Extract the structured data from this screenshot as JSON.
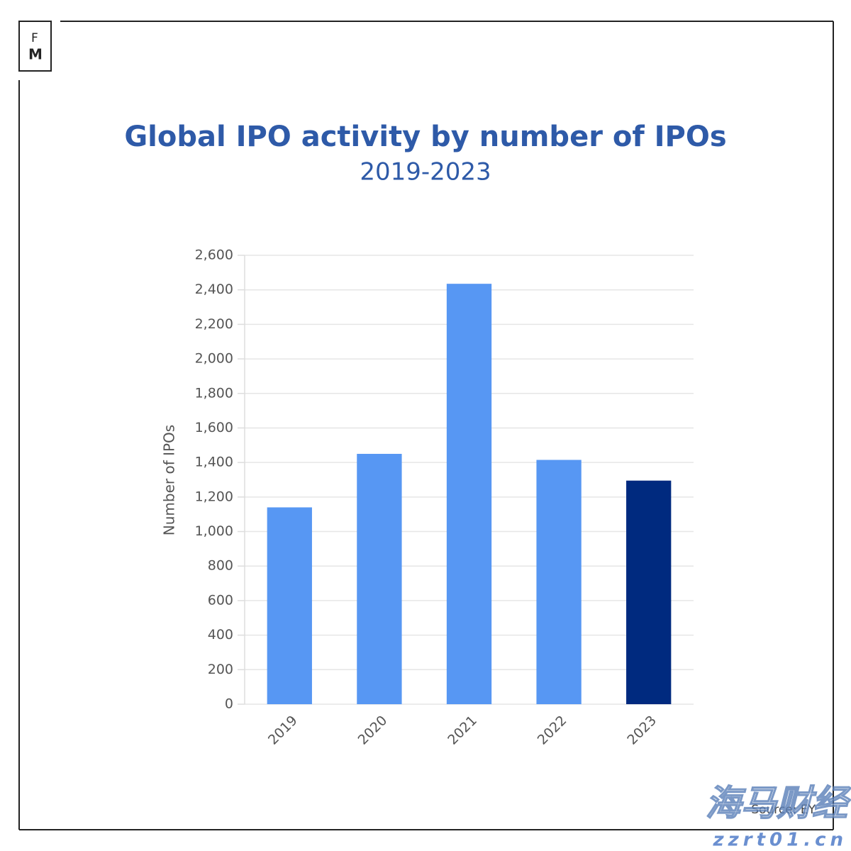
{
  "logo": {
    "top": "F",
    "bottom": "M"
  },
  "chart_data": {
    "type": "bar",
    "title": "Global IPO activity by number of IPOs",
    "subtitle": "2019-2023",
    "y_label": "Number of IPOs",
    "categories": [
      "2019",
      "2020",
      "2021",
      "2022",
      "2023"
    ],
    "values": [
      1140,
      1450,
      2435,
      1415,
      1295
    ],
    "colors": [
      "#5797f3",
      "#5797f3",
      "#5797f3",
      "#5797f3",
      "#002a7f"
    ],
    "ylim": [
      0,
      2600
    ],
    "yticks": [
      0,
      200,
      400,
      600,
      800,
      {
        "value": 1000,
        "label": "1,000"
      },
      {
        "value": 1200,
        "label": "1,200"
      },
      {
        "value": 1400,
        "label": "1,400"
      },
      {
        "value": 1600,
        "label": "1,600"
      },
      {
        "value": 1800,
        "label": "1,800"
      },
      {
        "value": 2000,
        "label": "2,000"
      },
      {
        "value": 2200,
        "label": "2,200"
      },
      {
        "value": 2400,
        "label": "2,400"
      },
      {
        "value": 2600,
        "label": "2,600"
      }
    ],
    "grid": true,
    "source": "Source: EY"
  },
  "watermark": {
    "brand": "海马财经",
    "url": "zzrt01.cn"
  }
}
